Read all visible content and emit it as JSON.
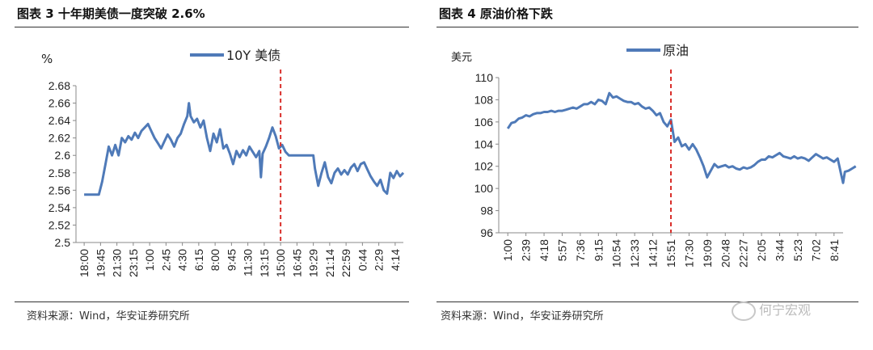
{
  "left": {
    "title": "图表 3 十年期美债一度突破 2.6%",
    "source": "资料来源：Wind，华安证券研究所",
    "chart_data": {
      "type": "line",
      "ylabel": "%",
      "series_name": "10Y 美债",
      "color": "#4f7ab8",
      "event_color": "#d9302c",
      "ylim": [
        2.5,
        2.68
      ],
      "yticks": [
        "2.68",
        "2.66",
        "2.64",
        "2.62",
        "2.6",
        "2.58",
        "2.56",
        "2.54",
        "2.52",
        "2.5"
      ],
      "xticks": [
        "18:00",
        "19:45",
        "21:30",
        "23:15",
        "1:00",
        "2:45",
        "4:30",
        "6:15",
        "8:00",
        "9:45",
        "11:30",
        "13:15",
        "15:00",
        "16:45",
        "19:29",
        "21:14",
        "22:59",
        "0:44",
        "2:29",
        "4:14"
      ],
      "event_x_index": 12,
      "points": [
        [
          0,
          2.555
        ],
        [
          0.4,
          2.555
        ],
        [
          0.9,
          2.555
        ],
        [
          1.1,
          2.57
        ],
        [
          1.3,
          2.59
        ],
        [
          1.5,
          2.61
        ],
        [
          1.7,
          2.6
        ],
        [
          1.9,
          2.612
        ],
        [
          2.1,
          2.6
        ],
        [
          2.3,
          2.62
        ],
        [
          2.5,
          2.615
        ],
        [
          2.7,
          2.622
        ],
        [
          2.9,
          2.618
        ],
        [
          3.1,
          2.626
        ],
        [
          3.3,
          2.62
        ],
        [
          3.5,
          2.628
        ],
        [
          3.7,
          2.632
        ],
        [
          3.9,
          2.636
        ],
        [
          4.1,
          2.628
        ],
        [
          4.3,
          2.62
        ],
        [
          4.5,
          2.614
        ],
        [
          4.7,
          2.608
        ],
        [
          4.9,
          2.616
        ],
        [
          5.1,
          2.624
        ],
        [
          5.3,
          2.618
        ],
        [
          5.5,
          2.61
        ],
        [
          5.7,
          2.62
        ],
        [
          5.9,
          2.625
        ],
        [
          6.1,
          2.636
        ],
        [
          6.3,
          2.645
        ],
        [
          6.4,
          2.66
        ],
        [
          6.5,
          2.645
        ],
        [
          6.7,
          2.638
        ],
        [
          6.9,
          2.642
        ],
        [
          7.1,
          2.632
        ],
        [
          7.3,
          2.64
        ],
        [
          7.5,
          2.62
        ],
        [
          7.7,
          2.605
        ],
        [
          7.9,
          2.625
        ],
        [
          8.1,
          2.615
        ],
        [
          8.3,
          2.63
        ],
        [
          8.5,
          2.608
        ],
        [
          8.7,
          2.612
        ],
        [
          8.9,
          2.602
        ],
        [
          9.1,
          2.59
        ],
        [
          9.3,
          2.605
        ],
        [
          9.5,
          2.598
        ],
        [
          9.7,
          2.606
        ],
        [
          9.9,
          2.6
        ],
        [
          10.1,
          2.61
        ],
        [
          10.3,
          2.604
        ],
        [
          10.5,
          2.598
        ],
        [
          10.7,
          2.605
        ],
        [
          10.8,
          2.575
        ],
        [
          10.9,
          2.602
        ],
        [
          11.1,
          2.61
        ],
        [
          11.3,
          2.62
        ],
        [
          11.5,
          2.632
        ],
        [
          11.7,
          2.622
        ],
        [
          11.9,
          2.608
        ],
        [
          12.1,
          2.612
        ],
        [
          12.3,
          2.604
        ],
        [
          12.5,
          2.6
        ],
        [
          13.5,
          2.6
        ],
        [
          14.0,
          2.6
        ],
        [
          14.1,
          2.585
        ],
        [
          14.3,
          2.565
        ],
        [
          14.5,
          2.58
        ],
        [
          14.7,
          2.592
        ],
        [
          14.9,
          2.575
        ],
        [
          15.1,
          2.568
        ],
        [
          15.3,
          2.58
        ],
        [
          15.5,
          2.585
        ],
        [
          15.7,
          2.578
        ],
        [
          15.9,
          2.583
        ],
        [
          16.1,
          2.578
        ],
        [
          16.3,
          2.586
        ],
        [
          16.5,
          2.59
        ],
        [
          16.7,
          2.582
        ],
        [
          16.9,
          2.59
        ],
        [
          17.1,
          2.592
        ],
        [
          17.3,
          2.584
        ],
        [
          17.5,
          2.576
        ],
        [
          17.7,
          2.57
        ],
        [
          17.9,
          2.565
        ],
        [
          18.1,
          2.572
        ],
        [
          18.3,
          2.56
        ],
        [
          18.5,
          2.556
        ],
        [
          18.7,
          2.58
        ],
        [
          18.9,
          2.574
        ],
        [
          19.1,
          2.582
        ],
        [
          19.3,
          2.576
        ],
        [
          19.5,
          2.58
        ]
      ]
    }
  },
  "right": {
    "title": "图表 4  原油价格下跌",
    "source": "资料来源：Wind，华安证券研究所",
    "chart_data": {
      "type": "line",
      "ylabel": "美元",
      "series_name": "原油",
      "color": "#4f7ab8",
      "event_color": "#d9302c",
      "ylim": [
        96,
        110
      ],
      "yticks": [
        "110",
        "108",
        "106",
        "104",
        "102",
        "100",
        "98",
        "96"
      ],
      "xticks": [
        "1:00",
        "2:39",
        "4:18",
        "5:57",
        "7:36",
        "9:15",
        "10:54",
        "12:33",
        "14:12",
        "15:51",
        "17:30",
        "19:09",
        "20:48",
        "22:27",
        "2:05",
        "3:44",
        "5:23",
        "7:02",
        "8:41"
      ],
      "event_x_index": 9,
      "points": [
        [
          0,
          105.4
        ],
        [
          0.2,
          105.9
        ],
        [
          0.4,
          106.0
        ],
        [
          0.6,
          106.3
        ],
        [
          0.8,
          106.4
        ],
        [
          1.0,
          106.6
        ],
        [
          1.2,
          106.5
        ],
        [
          1.4,
          106.7
        ],
        [
          1.6,
          106.8
        ],
        [
          1.8,
          106.8
        ],
        [
          2.0,
          106.9
        ],
        [
          2.2,
          106.9
        ],
        [
          2.4,
          107.0
        ],
        [
          2.6,
          106.9
        ],
        [
          2.8,
          107.0
        ],
        [
          3.0,
          107.0
        ],
        [
          3.2,
          107.1
        ],
        [
          3.4,
          107.2
        ],
        [
          3.6,
          107.3
        ],
        [
          3.8,
          107.2
        ],
        [
          4.0,
          107.4
        ],
        [
          4.2,
          107.6
        ],
        [
          4.4,
          107.6
        ],
        [
          4.6,
          107.8
        ],
        [
          4.8,
          107.6
        ],
        [
          5.0,
          108.0
        ],
        [
          5.2,
          107.9
        ],
        [
          5.4,
          107.6
        ],
        [
          5.6,
          108.6
        ],
        [
          5.8,
          108.2
        ],
        [
          6.0,
          108.3
        ],
        [
          6.2,
          108.1
        ],
        [
          6.4,
          107.9
        ],
        [
          6.6,
          107.8
        ],
        [
          6.8,
          107.8
        ],
        [
          7.0,
          107.6
        ],
        [
          7.2,
          107.7
        ],
        [
          7.4,
          107.4
        ],
        [
          7.6,
          107.2
        ],
        [
          7.8,
          107.3
        ],
        [
          8.0,
          107.0
        ],
        [
          8.2,
          106.6
        ],
        [
          8.4,
          106.8
        ],
        [
          8.6,
          106.0
        ],
        [
          8.8,
          105.6
        ],
        [
          9.0,
          106.2
        ],
        [
          9.2,
          104.2
        ],
        [
          9.4,
          104.6
        ],
        [
          9.6,
          103.8
        ],
        [
          9.8,
          104.0
        ],
        [
          10.0,
          103.5
        ],
        [
          10.2,
          104.0
        ],
        [
          10.4,
          103.5
        ],
        [
          10.6,
          102.8
        ],
        [
          10.8,
          102.0
        ],
        [
          11.0,
          101.0
        ],
        [
          11.2,
          101.6
        ],
        [
          11.4,
          102.2
        ],
        [
          11.6,
          101.9
        ],
        [
          11.8,
          102.0
        ],
        [
          12.0,
          102.1
        ],
        [
          12.2,
          101.9
        ],
        [
          12.4,
          102.0
        ],
        [
          12.6,
          101.8
        ],
        [
          12.8,
          101.7
        ],
        [
          13.0,
          101.9
        ],
        [
          13.2,
          101.8
        ],
        [
          13.4,
          101.9
        ],
        [
          13.6,
          102.1
        ],
        [
          13.8,
          102.4
        ],
        [
          14.0,
          102.6
        ],
        [
          14.2,
          102.6
        ],
        [
          14.4,
          102.9
        ],
        [
          14.6,
          102.8
        ],
        [
          14.8,
          103.0
        ],
        [
          15.0,
          103.2
        ],
        [
          15.2,
          102.9
        ],
        [
          15.4,
          102.8
        ],
        [
          15.6,
          102.7
        ],
        [
          15.8,
          102.9
        ],
        [
          16.0,
          102.7
        ],
        [
          16.2,
          102.8
        ],
        [
          16.4,
          102.7
        ],
        [
          16.6,
          102.5
        ],
        [
          16.8,
          102.8
        ],
        [
          17.0,
          103.1
        ],
        [
          17.2,
          102.9
        ],
        [
          17.4,
          102.7
        ],
        [
          17.6,
          102.8
        ],
        [
          17.8,
          102.6
        ],
        [
          18.0,
          102.4
        ],
        [
          18.2,
          102.7
        ],
        [
          18.4,
          101.2
        ],
        [
          18.5,
          100.5
        ],
        [
          18.6,
          101.5
        ],
        [
          18.8,
          101.6
        ],
        [
          19.0,
          101.8
        ],
        [
          19.2,
          102.0
        ]
      ]
    }
  },
  "watermark": {
    "text": "何宁宏观",
    "icon": "wechat-icon"
  }
}
